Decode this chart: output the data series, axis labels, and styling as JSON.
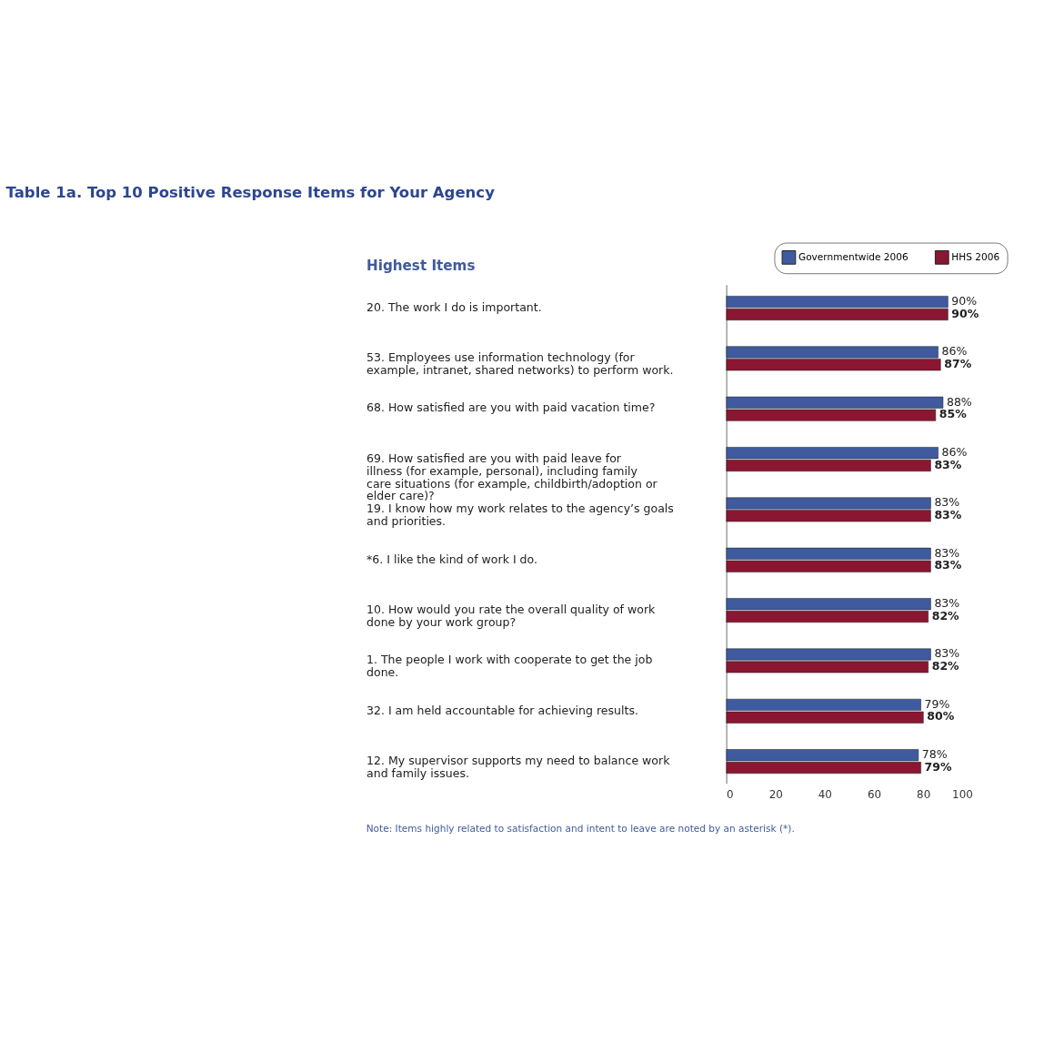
{
  "chart_data": {
    "type": "bar",
    "orientation": "horizontal",
    "title": "Table 1a. Top 10 Positive Response Items for Your Agency",
    "ylabel": "Highest Items",
    "categories": [
      "20. The work I do is important.",
      "53. Employees use information technology (for example, intranet, shared networks) to perform work.",
      "68. How satisfied are you with paid vacation time?",
      "69. How satisfied are you with paid leave for illness (for example, personal), including family care situations (for example, childbirth/adoption or elder care)?",
      "19. I know how my work relates to the agency’s goals and priorities.",
      "*6. I like the kind of work I do.",
      "10. How would you rate the overall quality of work done by your work group?",
      "1. The people I work with cooperate to get the job done.",
      "32. I am held accountable for achieving results.",
      "12. My supervisor supports my need to balance work and family issues."
    ],
    "series": [
      {
        "name": "Governmentwide 2006",
        "color": "#3f5a9e",
        "values": [
          90,
          86,
          88,
          86,
          83,
          83,
          83,
          83,
          79,
          78
        ],
        "value_labels": [
          "90%",
          "86%",
          "88%",
          "86%",
          "83%",
          "83%",
          "83%",
          "83%",
          "79%",
          "78%"
        ]
      },
      {
        "name": "HHS 2006",
        "color": "#8a1632",
        "values": [
          90,
          87,
          85,
          83,
          83,
          83,
          82,
          82,
          80,
          79
        ],
        "value_labels": [
          "90%",
          "87%",
          "85%",
          "83%",
          "83%",
          "83%",
          "82%",
          "82%",
          "80%",
          "79%"
        ]
      }
    ],
    "xlim": [
      0,
      100
    ],
    "xticks": [
      0,
      20,
      40,
      60,
      80,
      100
    ],
    "grid": false,
    "legend": "top right",
    "annotations": [
      "Note:  Items highly related to satisfaction and intent to leave are noted by an asterisk (*)."
    ]
  }
}
